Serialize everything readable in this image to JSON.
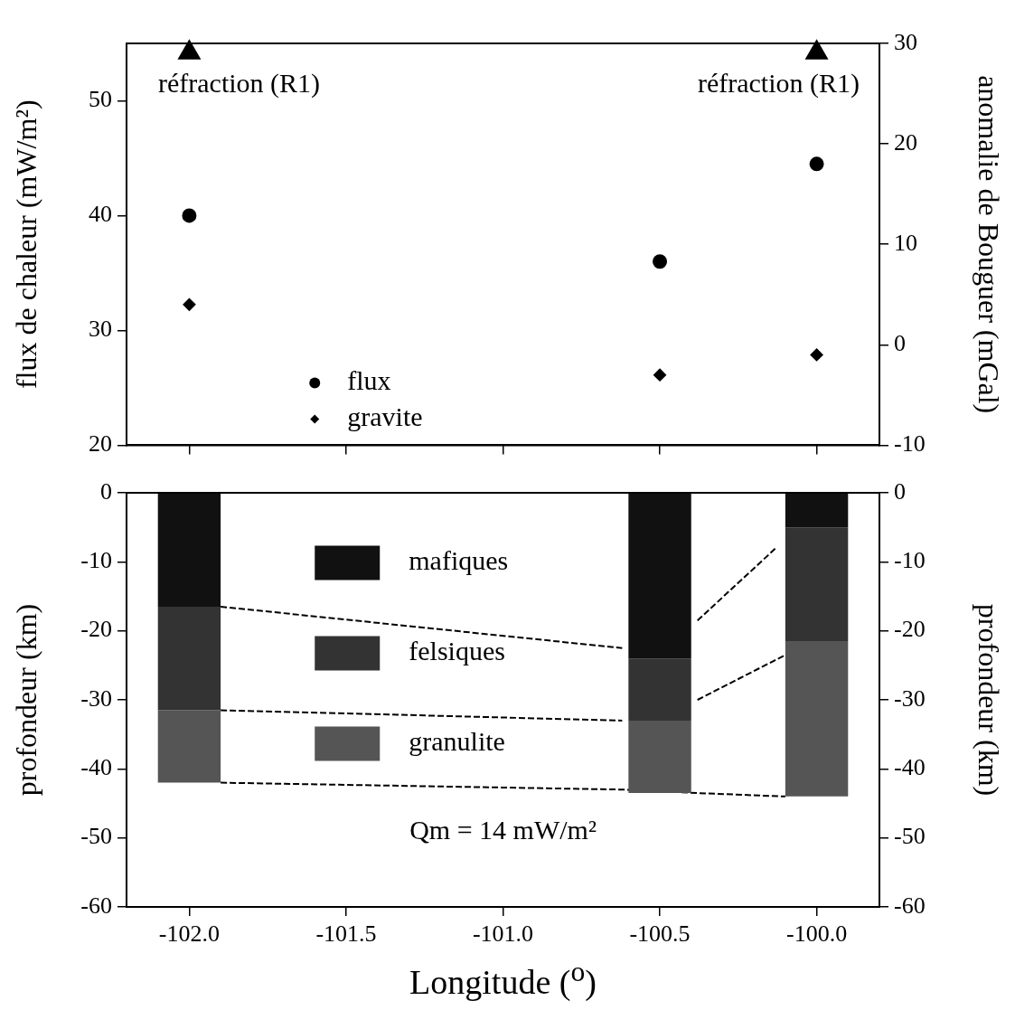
{
  "chart_data": [
    {
      "type": "scatter",
      "xlim": [
        -102.2,
        -99.8
      ],
      "xticks": [
        {
          "value": -102,
          "label": null
        },
        {
          "value": -101.5,
          "label": null
        },
        {
          "value": -101,
          "label": null
        },
        {
          "value": -100.5,
          "label": null
        },
        {
          "value": -100,
          "label": null
        }
      ],
      "ylim": [
        20,
        55
      ],
      "yticks": [
        20,
        30,
        40,
        50
      ],
      "y2lim": [
        -10,
        30
      ],
      "y2ticks": [
        -10,
        0,
        10,
        20,
        30
      ],
      "ylabel": "flux de chaleur (mW/m²)",
      "y2label": "anomalie de Bouguer (mGal)",
      "tick_labels": "y",
      "grid": false,
      "legend": "bottom left",
      "series": [
        {
          "name": "flux",
          "color": "#000000",
          "marker": "circle",
          "x": [
            -102,
            -100.5,
            -100
          ],
          "values": [
            40,
            36,
            44.5
          ]
        },
        {
          "name": "gravite",
          "color": "#000000",
          "marker": "diamond",
          "axis": "y2",
          "x": [
            -102,
            -100.5,
            -100
          ],
          "values": [
            4,
            -3,
            -1
          ]
        },
        {
          "color": "#000000",
          "marker": "triangle",
          "x": [
            -102,
            -100
          ],
          "values": [
            54.2,
            54.2
          ]
        }
      ],
      "annotations": [
        "réfraction (R1)",
        "réfraction (R1)"
      ]
    },
    {
      "type": "bar",
      "stacked": true,
      "xlim": [
        -102.2,
        -99.8
      ],
      "xticks": [
        {
          "value": -102,
          "label": "-102.0"
        },
        {
          "value": -101.5,
          "label": "-101.5"
        },
        {
          "value": -101,
          "label": "-101.0"
        },
        {
          "value": -100.5,
          "label": "-100.5"
        },
        {
          "value": -100,
          "label": "-100.0"
        }
      ],
      "ylim": [
        -60,
        0
      ],
      "yticks": [
        -60,
        -50,
        -40,
        -30,
        -20,
        -10,
        0
      ],
      "y2lim": [
        -60,
        0
      ],
      "y2ticks": [
        -60,
        -50,
        -40,
        -30,
        -20,
        -10,
        0
      ],
      "xlabel": "Longitude ($^{o}$)",
      "ylabel": "profondeur (km)",
      "y2label": "profondeur (km)",
      "grid": false,
      "legend": "top left",
      "marker": "none",
      "line_style": "dashed",
      "x": [
        -102,
        -100.5,
        -100
      ],
      "series": [
        {
          "name": "mafiques",
          "color": "#111111",
          "values": [
            -16.5,
            -24,
            -5
          ]
        },
        {
          "name": "felsiques",
          "color": "#333333",
          "values": [
            -15,
            -9,
            -16.5
          ]
        },
        {
          "name": "granulite",
          "color": "#555555",
          "values": [
            -10.5,
            -10.5,
            -22.5
          ]
        },
        {
          "type": "line",
          "color": "#000000",
          "x": [
            -101.9,
            -100.62
          ],
          "values": [
            -16.5,
            -22.5
          ]
        },
        {
          "type": "line",
          "color": "#000000",
          "x": [
            -101.9,
            -100.62
          ],
          "values": [
            -31.5,
            -33
          ]
        },
        {
          "type": "line",
          "color": "#000000",
          "x": [
            -101.9,
            -100.62,
            -100.38,
            -100.1
          ],
          "values": [
            -42,
            -43,
            -43.5,
            -44
          ]
        },
        {
          "type": "line",
          "color": "#000000",
          "x": [
            -100.38,
            -100.13
          ],
          "values": [
            -18.5,
            -8
          ]
        },
        {
          "type": "line",
          "color": "#000000",
          "x": [
            -100.38,
            -100.1
          ],
          "values": [
            -30,
            -23.5
          ]
        }
      ],
      "annotations": [
        "Qm = 14 mW/m²"
      ]
    }
  ]
}
